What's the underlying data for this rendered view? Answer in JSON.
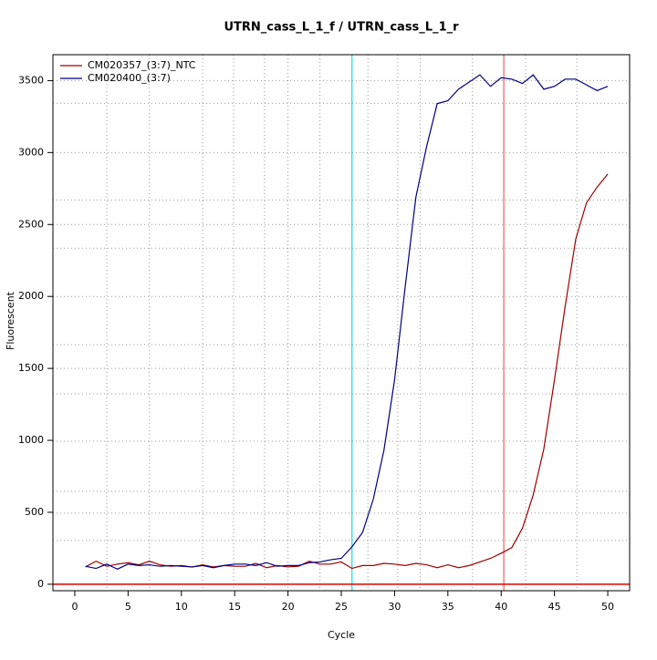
{
  "chart_data": {
    "type": "line",
    "title": "UTRN_cass_L_1_f / UTRN_cass_L_1_r",
    "x_label": "Cycle",
    "y_label": "Fluorescent",
    "x": [
      1,
      2,
      3,
      4,
      5,
      6,
      7,
      8,
      9,
      10,
      11,
      12,
      13,
      14,
      15,
      16,
      17,
      18,
      19,
      20,
      21,
      22,
      23,
      24,
      25,
      26,
      27,
      28,
      29,
      30,
      31,
      32,
      33,
      34,
      35,
      36,
      37,
      38,
      39,
      40,
      41,
      42,
      43,
      44,
      45,
      46,
      47,
      48,
      49,
      50
    ],
    "series": [
      {
        "name": "CM020357_(3:7)_NTC",
        "color": "#a00000",
        "values": [
          120,
          160,
          125,
          140,
          150,
          135,
          160,
          135,
          125,
          130,
          120,
          135,
          120,
          130,
          125,
          125,
          145,
          115,
          130,
          120,
          125,
          160,
          140,
          140,
          155,
          110,
          130,
          130,
          145,
          140,
          130,
          145,
          135,
          115,
          135,
          115,
          130,
          155,
          180,
          215,
          255,
          390,
          620,
          940,
          1420,
          1930,
          2400,
          2650,
          2760,
          2850
        ]
      },
      {
        "name": "CM020400_(3:7)",
        "color": "#000080",
        "values": [
          125,
          110,
          140,
          105,
          140,
          130,
          135,
          125,
          130,
          125,
          120,
          130,
          115,
          130,
          140,
          140,
          130,
          150,
          125,
          130,
          130,
          150,
          155,
          170,
          180,
          260,
          360,
          590,
          930,
          1420,
          2070,
          2690,
          3040,
          3340,
          3360,
          3440,
          3490,
          3540,
          3460,
          3520,
          3510,
          3480,
          3540,
          3440,
          3460,
          3510,
          3510,
          3470,
          3430,
          3460
        ]
      }
    ],
    "xlim": [
      -2.05,
      52.05
    ],
    "ylim": [
      -45,
      3680
    ],
    "xticks": [
      0,
      5,
      10,
      15,
      20,
      25,
      30,
      35,
      40,
      45,
      50
    ],
    "yticks": [
      0,
      500,
      1000,
      1500,
      2000,
      2500,
      3000,
      3500
    ],
    "vgrid": [
      3,
      7,
      12,
      14.9,
      17.8,
      20,
      23,
      27.5,
      30.3,
      32.4,
      37.3,
      42.3,
      47.1
    ],
    "hgrid": [
      3500,
      3342,
      3000,
      2670,
      2500,
      2335,
      2000,
      1665,
      1500,
      1323,
      994,
      646,
      494,
      304
    ],
    "threshold_lines": [
      {
        "x": 26,
        "color": "#40e0e0"
      },
      {
        "x": 40.25,
        "color": "#f08080"
      }
    ],
    "baseline": {
      "y": 0,
      "color": "#e00000"
    },
    "legend": "top-left"
  }
}
